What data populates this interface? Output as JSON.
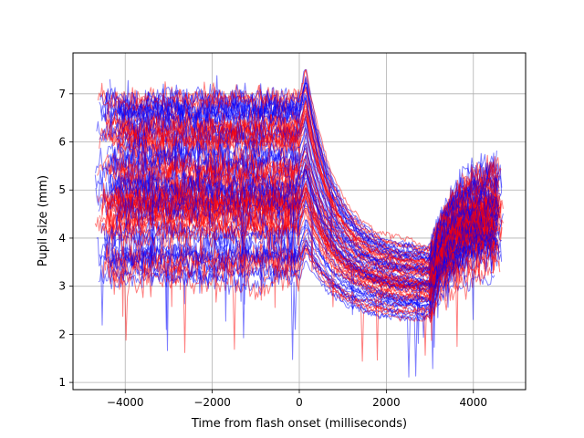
{
  "chart_data": {
    "type": "line",
    "title": "",
    "xlabel": "Time from flash onset (milliseconds)",
    "ylabel": "Pupil size (mm)",
    "xlim": [
      -5200,
      5200
    ],
    "ylim": [
      0.85,
      7.85
    ],
    "xticks": [
      -4000,
      -2000,
      0,
      2000,
      4000
    ],
    "xtick_labels": [
      "−4000",
      "−2000",
      "0",
      "2000",
      "4000"
    ],
    "yticks": [
      1,
      2,
      3,
      4,
      5,
      6,
      7
    ],
    "ytick_labels": [
      "1",
      "2",
      "3",
      "4",
      "5",
      "6",
      "7"
    ],
    "grid": true,
    "legend": "none",
    "series_groups": [
      {
        "name": "red traces",
        "color": "#ff0000",
        "alpha": 0.5,
        "count": 50
      },
      {
        "name": "blue traces",
        "color": "#0000ff",
        "alpha": 0.5,
        "count": 50
      }
    ],
    "baseline_profile": {
      "pre_flash_range_mm": [
        2.9,
        7.2
      ],
      "peak_at_ms": 150,
      "constriction_min_ms": 2500,
      "constriction_min_mm": [
        2.3,
        3.8
      ],
      "recovery_start_ms": 3000,
      "end_range_mm": [
        3.4,
        5.2
      ]
    }
  }
}
